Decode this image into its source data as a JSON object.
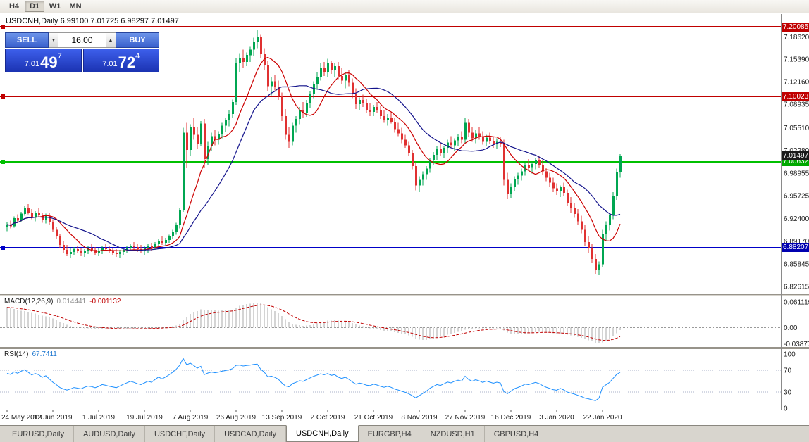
{
  "toolbar": {
    "timeframes": [
      {
        "label": "H4",
        "active": false
      },
      {
        "label": "D1",
        "active": true
      },
      {
        "label": "W1",
        "active": false
      },
      {
        "label": "MN",
        "active": false
      }
    ]
  },
  "chart": {
    "symbol_title": "USDCNH,Daily 6.99100 7.01725 6.98297 7.01497",
    "current_price_label": "7.01497",
    "trade_panel": {
      "sell_label": "SELL",
      "buy_label": "BUY",
      "volume": "16.00",
      "spin_up_icon": "▲",
      "spin_down_icon": "▼",
      "sell_price": {
        "prefix": "7.01",
        "big": "49",
        "sup": "7"
      },
      "buy_price": {
        "prefix": "7.01",
        "big": "72",
        "sup": "4"
      }
    },
    "hlines": [
      {
        "price": 7.20085,
        "label": "7.20085",
        "color": "#c00000",
        "badge_color": "#c00000"
      },
      {
        "price": 7.10023,
        "label": "7.10023",
        "color": "#c00000",
        "badge_color": "#c00000"
      },
      {
        "price": 7.00632,
        "label": "7.00632",
        "color": "#00c000",
        "badge_color": "#00a800"
      },
      {
        "price": 6.88207,
        "label": "6.88207",
        "color": "#0000c8",
        "badge_color": "#0000b0"
      }
    ],
    "price_axis": [
      "7.18620",
      "7.15390",
      "7.12160",
      "7.08935",
      "7.05510",
      "7.02280",
      "6.98955",
      "6.95725",
      "6.92400",
      "6.89170",
      "6.85845",
      "6.82615"
    ]
  },
  "macd": {
    "name": "MACD(12,26,9)",
    "main_value": "0.014441",
    "signal_value": "-0.001132",
    "params": {
      "fast": 12,
      "slow": 26,
      "signal": 9
    },
    "axis_labels": [
      "0.061119",
      "0.00",
      "-0.03877"
    ],
    "axis_values": [
      0.061119,
      0,
      -0.03877
    ],
    "histogram_color": "#a8a8a8",
    "signal_color": "#c00000"
  },
  "rsi": {
    "name": "RSI(14)",
    "value": "67.7411",
    "period": 14,
    "axis_labels": [
      "100",
      "70",
      "30",
      "0"
    ],
    "axis_values": [
      100,
      70,
      30,
      0
    ],
    "levels": [
      70,
      30
    ],
    "line_color": "#1e90ff"
  },
  "tabs": [
    {
      "label": "EURUSD,Daily",
      "active": false
    },
    {
      "label": "AUDUSD,Daily",
      "active": false
    },
    {
      "label": "USDCHF,Daily",
      "active": false
    },
    {
      "label": "USDCAD,Daily",
      "active": false
    },
    {
      "label": "USDCNH,Daily",
      "active": true
    },
    {
      "label": "EURGBP,H4",
      "active": false
    },
    {
      "label": "NZDUSD,H1",
      "active": false
    },
    {
      "label": "GBPUSD,H4",
      "active": false
    }
  ],
  "chart_data": {
    "type": "candlestick",
    "symbol": "USDCNH",
    "timeframe": "Daily",
    "last_bar": {
      "open": 6.991,
      "high": 7.01725,
      "low": 6.98297,
      "close": 7.01497
    },
    "ylim": [
      6.81,
      7.215
    ],
    "up_color": "#00a651",
    "down_color": "#e03131",
    "ma_fast": {
      "period": 10,
      "color": "#cc0000"
    },
    "ma_slow": {
      "period": 21,
      "color": "#14148c"
    },
    "x_labels": [
      {
        "index": 0,
        "label": "24 May 2019"
      },
      {
        "index": 13,
        "label": "12 Jun 2019"
      },
      {
        "index": 26,
        "label": "1 Jul 2019"
      },
      {
        "index": 39,
        "label": "19 Jul 2019"
      },
      {
        "index": 52,
        "label": "7 Aug 2019"
      },
      {
        "index": 65,
        "label": "26 Aug 2019"
      },
      {
        "index": 78,
        "label": "13 Sep 2019"
      },
      {
        "index": 91,
        "label": "2 Oct 2019"
      },
      {
        "index": 104,
        "label": "21 Oct 2019"
      },
      {
        "index": 117,
        "label": "8 Nov 2019"
      },
      {
        "index": 130,
        "label": "27 Nov 2019"
      },
      {
        "index": 143,
        "label": "16 Dec 2019"
      },
      {
        "index": 156,
        "label": "3 Jan 2020"
      },
      {
        "index": 169,
        "label": "22 Jan 2020"
      }
    ],
    "ohlc": [
      [
        6.912,
        6.9185,
        6.906,
        6.9155
      ],
      [
        6.9155,
        6.921,
        6.91,
        6.913
      ],
      [
        6.913,
        6.927,
        6.911,
        6.9245
      ],
      [
        6.9245,
        6.93,
        6.918,
        6.921
      ],
      [
        6.921,
        6.934,
        6.919,
        6.931
      ],
      [
        6.931,
        6.942,
        6.928,
        6.939
      ],
      [
        6.939,
        6.945,
        6.93,
        6.933
      ],
      [
        6.933,
        6.938,
        6.923,
        6.926
      ],
      [
        6.926,
        6.935,
        6.92,
        6.932
      ],
      [
        6.932,
        6.939,
        6.926,
        6.929
      ],
      [
        6.929,
        6.933,
        6.918,
        6.922
      ],
      [
        6.922,
        6.931,
        6.917,
        6.928
      ],
      [
        6.928,
        6.932,
        6.915,
        6.919
      ],
      [
        6.919,
        6.923,
        6.905,
        6.908
      ],
      [
        6.908,
        6.912,
        6.895,
        6.899
      ],
      [
        6.899,
        6.902,
        6.882,
        6.886
      ],
      [
        6.886,
        6.892,
        6.874,
        6.879
      ],
      [
        6.879,
        6.886,
        6.87,
        6.873
      ],
      [
        6.873,
        6.881,
        6.868,
        6.876
      ],
      [
        6.876,
        6.883,
        6.871,
        6.88
      ],
      [
        6.88,
        6.885,
        6.874,
        6.877
      ],
      [
        6.877,
        6.882,
        6.87,
        6.874
      ],
      [
        6.874,
        6.88,
        6.869,
        6.878
      ],
      [
        6.878,
        6.884,
        6.873,
        6.881
      ],
      [
        6.881,
        6.887,
        6.876,
        6.879
      ],
      [
        6.879,
        6.883,
        6.872,
        6.875
      ],
      [
        6.875,
        6.881,
        6.87,
        6.878
      ],
      [
        6.878,
        6.884,
        6.873,
        6.882
      ],
      [
        6.882,
        6.887,
        6.877,
        6.88
      ],
      [
        6.88,
        6.885,
        6.874,
        6.877
      ],
      [
        6.877,
        6.882,
        6.871,
        6.875
      ],
      [
        6.875,
        6.88,
        6.869,
        6.873
      ],
      [
        6.873,
        6.879,
        6.868,
        6.876
      ],
      [
        6.876,
        6.882,
        6.871,
        6.879
      ],
      [
        6.879,
        6.885,
        6.874,
        6.882
      ],
      [
        6.882,
        6.888,
        6.877,
        6.885
      ],
      [
        6.885,
        6.89,
        6.879,
        6.883
      ],
      [
        6.883,
        6.888,
        6.876,
        6.88
      ],
      [
        6.88,
        6.886,
        6.874,
        6.878
      ],
      [
        6.878,
        6.884,
        6.872,
        6.881
      ],
      [
        6.881,
        6.887,
        6.875,
        6.884
      ],
      [
        6.884,
        6.889,
        6.878,
        6.882
      ],
      [
        6.882,
        6.89,
        6.879,
        6.887
      ],
      [
        6.887,
        6.895,
        6.883,
        6.892
      ],
      [
        6.892,
        6.899,
        6.886,
        6.889
      ],
      [
        6.889,
        6.896,
        6.884,
        6.893
      ],
      [
        6.893,
        6.901,
        6.889,
        6.898
      ],
      [
        6.898,
        6.908,
        6.894,
        6.905
      ],
      [
        6.905,
        6.918,
        6.901,
        6.915
      ],
      [
        6.915,
        6.94,
        6.91,
        6.936
      ],
      [
        6.936,
        7.055,
        6.934,
        7.048
      ],
      [
        7.048,
        7.062,
        6.998,
        7.023
      ],
      [
        7.023,
        7.06,
        7.015,
        7.056
      ],
      [
        7.056,
        7.07,
        7.038,
        7.045
      ],
      [
        7.045,
        7.056,
        7.025,
        7.032
      ],
      [
        7.032,
        7.065,
        7.028,
        7.061
      ],
      [
        7.061,
        7.068,
        6.998,
        7.01
      ],
      [
        7.01,
        7.035,
        7.002,
        7.029
      ],
      [
        7.029,
        7.048,
        7.022,
        7.043
      ],
      [
        7.043,
        7.052,
        7.03,
        7.038
      ],
      [
        7.038,
        7.05,
        7.031,
        7.046
      ],
      [
        7.046,
        7.062,
        7.04,
        7.058
      ],
      [
        7.058,
        7.07,
        7.049,
        7.066
      ],
      [
        7.066,
        7.08,
        7.057,
        7.075
      ],
      [
        7.075,
        7.096,
        7.069,
        7.092
      ],
      [
        7.092,
        7.156,
        7.088,
        7.148
      ],
      [
        7.148,
        7.162,
        7.135,
        7.155
      ],
      [
        7.155,
        7.168,
        7.142,
        7.15
      ],
      [
        7.15,
        7.164,
        7.144,
        7.16
      ],
      [
        7.16,
        7.172,
        7.15,
        7.168
      ],
      [
        7.168,
        7.185,
        7.159,
        7.179
      ],
      [
        7.179,
        7.1965,
        7.17,
        7.186
      ],
      [
        7.186,
        7.189,
        7.155,
        7.161
      ],
      [
        7.161,
        7.17,
        7.138,
        7.145
      ],
      [
        7.145,
        7.152,
        7.108,
        7.115
      ],
      [
        7.115,
        7.128,
        7.102,
        7.122
      ],
      [
        7.122,
        7.131,
        7.109,
        7.114
      ],
      [
        7.114,
        7.123,
        7.095,
        7.101
      ],
      [
        7.101,
        7.106,
        7.065,
        7.072
      ],
      [
        7.072,
        7.082,
        7.038,
        7.045
      ],
      [
        7.045,
        7.056,
        7.026,
        7.035
      ],
      [
        7.035,
        7.062,
        7.03,
        7.058
      ],
      [
        7.058,
        7.072,
        7.048,
        7.068
      ],
      [
        7.068,
        7.085,
        7.06,
        7.081
      ],
      [
        7.081,
        7.092,
        7.07,
        7.076
      ],
      [
        7.076,
        7.095,
        7.071,
        7.09
      ],
      [
        7.09,
        7.108,
        7.084,
        7.104
      ],
      [
        7.104,
        7.122,
        7.098,
        7.118
      ],
      [
        7.118,
        7.135,
        7.11,
        7.129
      ],
      [
        7.129,
        7.148,
        7.123,
        7.142
      ],
      [
        7.142,
        7.15,
        7.13,
        7.136
      ],
      [
        7.136,
        7.1545,
        7.128,
        7.148
      ],
      [
        7.148,
        7.152,
        7.133,
        7.138
      ],
      [
        7.138,
        7.149,
        7.129,
        7.144
      ],
      [
        7.144,
        7.15,
        7.125,
        7.13
      ],
      [
        7.13,
        7.142,
        7.118,
        7.123
      ],
      [
        7.123,
        7.135,
        7.112,
        7.132
      ],
      [
        7.132,
        7.138,
        7.115,
        7.12
      ],
      [
        7.12,
        7.126,
        7.098,
        7.104
      ],
      [
        7.104,
        7.112,
        7.082,
        7.089
      ],
      [
        7.089,
        7.099,
        7.08,
        7.095
      ],
      [
        7.095,
        7.103,
        7.085,
        7.09
      ],
      [
        7.09,
        7.097,
        7.076,
        7.081
      ],
      [
        7.081,
        7.09,
        7.072,
        7.078
      ],
      [
        7.078,
        7.088,
        7.072,
        7.085
      ],
      [
        7.085,
        7.092,
        7.076,
        7.08
      ],
      [
        7.08,
        7.087,
        7.068,
        7.072
      ],
      [
        7.072,
        7.08,
        7.062,
        7.066
      ],
      [
        7.066,
        7.075,
        7.058,
        7.07
      ],
      [
        7.07,
        7.078,
        7.061,
        7.064
      ],
      [
        7.064,
        7.07,
        7.048,
        7.053
      ],
      [
        7.053,
        7.062,
        7.043,
        7.047
      ],
      [
        7.047,
        7.055,
        7.033,
        7.038
      ],
      [
        7.038,
        7.045,
        7.026,
        7.03
      ],
      [
        7.03,
        7.035,
        7.015,
        7.019
      ],
      [
        7.019,
        7.023,
        6.995,
        7.0
      ],
      [
        7.0,
        7.006,
        6.965,
        6.972
      ],
      [
        6.972,
        6.985,
        6.962,
        6.98
      ],
      [
        6.98,
        6.992,
        6.972,
        6.988
      ],
      [
        6.988,
        7.0,
        6.98,
        6.996
      ],
      [
        6.996,
        7.012,
        6.99,
        7.008
      ],
      [
        7.008,
        7.02,
        7.001,
        7.016
      ],
      [
        7.016,
        7.028,
        7.009,
        7.024
      ],
      [
        7.024,
        7.033,
        7.015,
        7.019
      ],
      [
        7.019,
        7.029,
        7.011,
        7.026
      ],
      [
        7.026,
        7.038,
        7.019,
        7.034
      ],
      [
        7.034,
        7.043,
        7.026,
        7.03
      ],
      [
        7.03,
        7.04,
        7.022,
        7.037
      ],
      [
        7.037,
        7.046,
        7.029,
        7.042
      ],
      [
        7.042,
        7.05,
        7.033,
        7.038
      ],
      [
        7.038,
        7.069,
        7.033,
        7.062
      ],
      [
        7.062,
        7.068,
        7.042,
        7.048
      ],
      [
        7.048,
        7.056,
        7.035,
        7.04
      ],
      [
        7.04,
        7.052,
        7.033,
        7.047
      ],
      [
        7.047,
        7.056,
        7.038,
        7.042
      ],
      [
        7.042,
        7.05,
        7.031,
        7.035
      ],
      [
        7.035,
        7.045,
        7.028,
        7.041
      ],
      [
        7.041,
        7.048,
        7.032,
        7.036
      ],
      [
        7.036,
        7.043,
        7.026,
        7.031
      ],
      [
        7.031,
        7.04,
        7.024,
        7.035
      ],
      [
        7.035,
        7.042,
        7.027,
        7.032
      ],
      [
        7.032,
        7.038,
        6.972,
        6.98
      ],
      [
        6.98,
        6.99,
        6.952,
        6.96
      ],
      [
        6.96,
        6.975,
        6.953,
        6.97
      ],
      [
        6.97,
        6.985,
        6.964,
        6.981
      ],
      [
        6.981,
        6.99,
        6.973,
        6.986
      ],
      [
        6.986,
        6.996,
        6.979,
        6.992
      ],
      [
        6.992,
        7.005,
        6.986,
        7.001
      ],
      [
        7.001,
        7.01,
        6.993,
        6.998
      ],
      [
        6.998,
        7.006,
        6.989,
        7.003
      ],
      [
        7.003,
        7.012,
        6.995,
        7.008
      ],
      [
        7.008,
        7.015,
        6.998,
        7.002
      ],
      [
        7.002,
        7.008,
        6.987,
        6.992
      ],
      [
        6.992,
        6.998,
        6.978,
        6.983
      ],
      [
        6.983,
        6.99,
        6.97,
        6.976
      ],
      [
        6.976,
        6.983,
        6.962,
        6.968
      ],
      [
        6.968,
        6.975,
        6.958,
        6.964
      ],
      [
        6.964,
        6.972,
        6.955,
        6.97
      ],
      [
        6.97,
        6.976,
        6.956,
        6.961
      ],
      [
        6.961,
        6.966,
        6.942,
        6.947
      ],
      [
        6.947,
        6.955,
        6.933,
        6.939
      ],
      [
        6.939,
        6.946,
        6.925,
        6.931
      ],
      [
        6.931,
        6.938,
        6.915,
        6.92
      ],
      [
        6.92,
        6.928,
        6.903,
        6.908
      ],
      [
        6.908,
        6.915,
        6.885,
        6.89
      ],
      [
        6.89,
        6.898,
        6.875,
        6.881
      ],
      [
        6.881,
        6.887,
        6.86,
        6.866
      ],
      [
        6.866,
        6.873,
        6.844,
        6.85
      ],
      [
        6.85,
        6.862,
        6.8422,
        6.858
      ],
      [
        6.858,
        6.908,
        6.854,
        6.902
      ],
      [
        6.902,
        6.92,
        6.892,
        6.915
      ],
      [
        6.915,
        6.933,
        6.907,
        6.929
      ],
      [
        6.929,
        6.962,
        6.923,
        6.956
      ],
      [
        6.956,
        6.996,
        6.951,
        6.991
      ],
      [
        6.991,
        7.01725,
        6.98297,
        7.01497
      ]
    ]
  }
}
